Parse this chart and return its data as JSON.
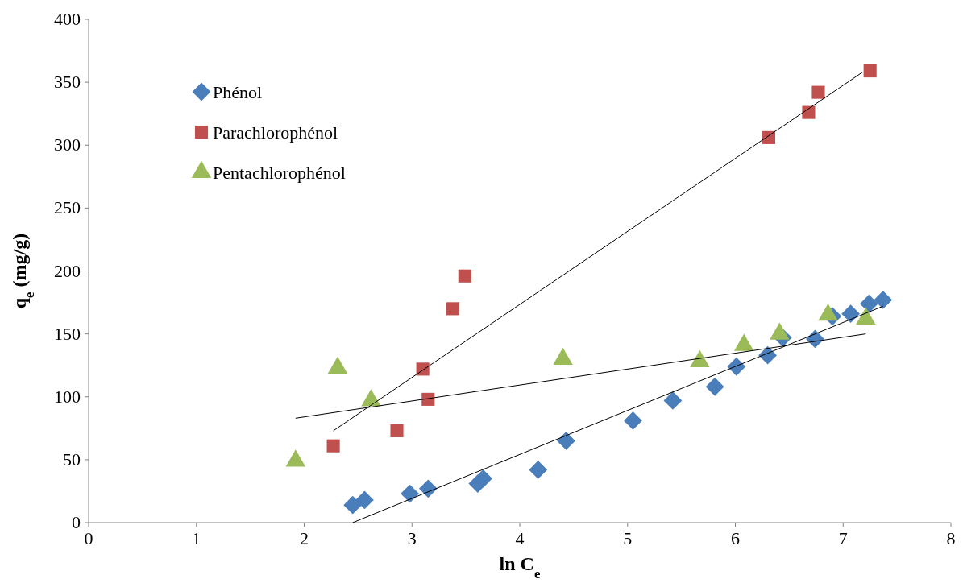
{
  "chart_data": {
    "type": "scatter",
    "xlabel": "ln C$_{e}$",
    "ylabel": "q$_{e}$ (mg/g)",
    "xlim": [
      0,
      8
    ],
    "ylim": [
      0,
      400
    ],
    "xticks": [
      0,
      1,
      2,
      3,
      4,
      5,
      6,
      7,
      8
    ],
    "yticks": [
      0,
      50,
      100,
      150,
      200,
      250,
      300,
      350,
      400
    ],
    "grid": false,
    "legend": "top left",
    "series": [
      {
        "name": "Phénol",
        "color": "#4a7ebb",
        "marker": "diamond",
        "x": [
          2.45,
          2.56,
          2.98,
          3.15,
          3.61,
          3.66,
          4.17,
          4.43,
          5.05,
          5.42,
          5.81,
          6.01,
          6.3,
          6.44,
          6.74,
          6.9,
          7.07,
          7.24,
          7.37
        ],
        "values": [
          14,
          18,
          23,
          27,
          31,
          35,
          42,
          65,
          81,
          97,
          108,
          124,
          133,
          147,
          146,
          164,
          166,
          174,
          177
        ]
      },
      {
        "name": "Parachlorophénol",
        "color": "#c0504d",
        "marker": "square",
        "x": [
          2.27,
          2.86,
          3.1,
          3.15,
          3.38,
          3.49,
          6.31,
          6.68,
          6.77,
          7.25
        ],
        "values": [
          61,
          73,
          122,
          98,
          170,
          196,
          306,
          326,
          342,
          359
        ]
      },
      {
        "name": "Pentachlorophénol",
        "color": "#9bbb59",
        "marker": "triangle",
        "x": [
          1.92,
          2.31,
          2.62,
          4.4,
          5.67,
          6.08,
          6.41,
          6.86,
          7.21
        ],
        "values": [
          49,
          123,
          97,
          130,
          128,
          141,
          150,
          165,
          162
        ]
      },
      {
        "type": "line",
        "color": "#000000",
        "marker": "none",
        "x": [
          2.45,
          7.37
        ],
        "values": [
          0,
          172
        ]
      },
      {
        "type": "line",
        "color": "#000000",
        "marker": "none",
        "x": [
          2.27,
          7.18
        ],
        "values": [
          73,
          358
        ]
      },
      {
        "type": "line",
        "color": "#000000",
        "marker": "none",
        "x": [
          1.92,
          7.21
        ],
        "values": [
          83,
          150
        ]
      }
    ]
  }
}
